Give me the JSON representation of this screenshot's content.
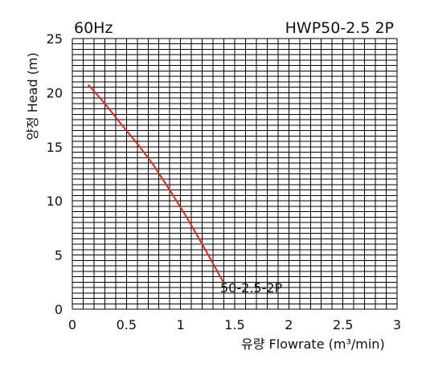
{
  "chart_data": {
    "type": "line",
    "title_left": "60Hz",
    "title_right": "HWP50-2.5 2P",
    "xlabel": "유량 Flowrate (m³/min)",
    "ylabel": "양정 Head (m)",
    "xlim": [
      0,
      3
    ],
    "ylim": [
      0,
      25
    ],
    "grid": true,
    "x_ticks": [
      "0",
      "0.5",
      "1",
      "1.5",
      "2",
      "2.5",
      "3"
    ],
    "y_ticks": [
      "0",
      "5",
      "10",
      "15",
      "20",
      "25"
    ],
    "colors": {
      "curve": "#e8261f",
      "grid": "#000000"
    },
    "series": [
      {
        "name": "50-2.5-2P",
        "x": [
          0.15,
          0.3,
          0.45,
          0.6,
          0.75,
          0.9,
          1.05,
          1.2,
          1.3,
          1.4
        ],
        "y": [
          20.7,
          19.0,
          17.1,
          15.3,
          13.3,
          11.0,
          8.6,
          6.0,
          4.2,
          2.4
        ]
      }
    ]
  }
}
